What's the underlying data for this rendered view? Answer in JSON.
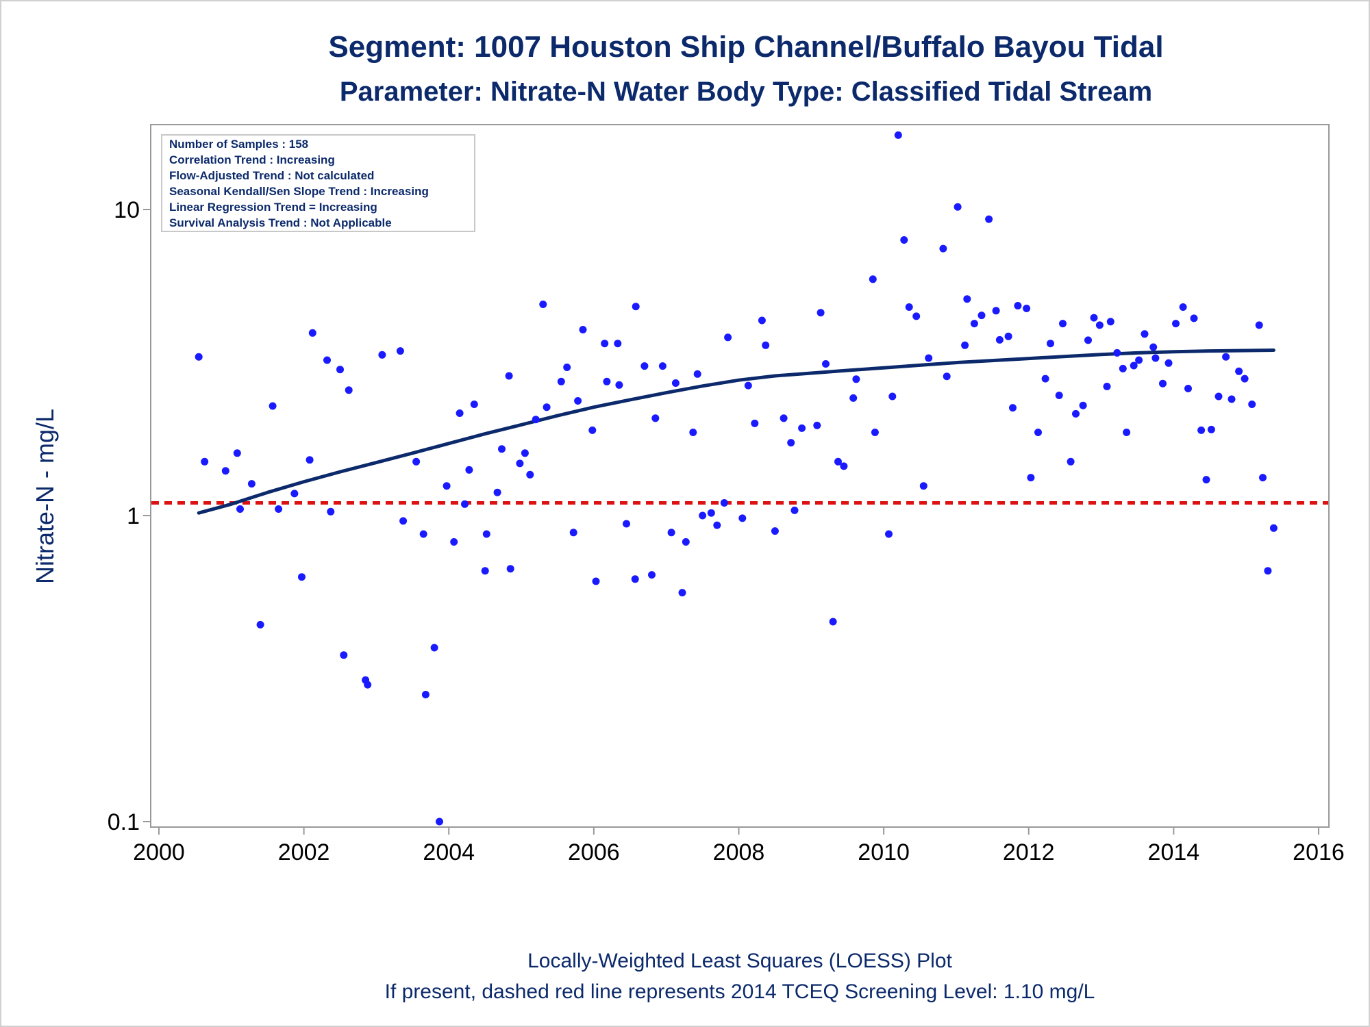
{
  "chart_data": {
    "type": "scatter",
    "title": "Segment: 1007  Houston Ship Channel/Buffalo Bayou Tidal",
    "subtitle": "Parameter: Nitrate-N   Water Body Type: Classified Tidal Stream",
    "xlabel": "",
    "ylabel": "Nitrate-N - mg/L",
    "xlim": [
      2000,
      2016
    ],
    "ylim": [
      0.1,
      20
    ],
    "yscale": "log",
    "grid": false,
    "x_ticks": [
      "2000",
      "2002",
      "2004",
      "2006",
      "2008",
      "2010",
      "2012",
      "2014",
      "2016"
    ],
    "y_ticks": [
      "0.1",
      "1",
      "10"
    ],
    "footnotes": [
      "Locally-Weighted Least Squares (LOESS) Plot",
      "If present, dashed red line represents 2014 TCEQ Screening Level: 1.10 mg/L"
    ],
    "stats_box": {
      "placement": "top-left",
      "lines": [
        "Number of Samples : 158",
        "Correlation Trend : Increasing",
        "Flow-Adjusted Trend : Not calculated",
        "Seasonal Kendall/Sen Slope Trend : Increasing",
        "Linear Regression Trend = Increasing",
        "Survival Analysis Trend : Not Applicable"
      ]
    },
    "screening_level": 1.1,
    "colors": {
      "points": "#1a1aff",
      "loess": "#0c2a6b",
      "screening": "#dd1111",
      "text": "#0c2a6b",
      "axis": "#999999"
    },
    "points": [
      [
        2000.55,
        3.3
      ],
      [
        2000.63,
        1.5
      ],
      [
        2000.92,
        1.4
      ],
      [
        2001.08,
        1.6
      ],
      [
        2001.12,
        1.05
      ],
      [
        2001.28,
        1.27
      ],
      [
        2001.4,
        0.44
      ],
      [
        2001.57,
        2.28
      ],
      [
        2001.65,
        1.05
      ],
      [
        2001.87,
        1.18
      ],
      [
        2001.97,
        0.63
      ],
      [
        2002.08,
        1.52
      ],
      [
        2002.12,
        3.95
      ],
      [
        2002.32,
        3.22
      ],
      [
        2002.37,
        1.03
      ],
      [
        2002.5,
        3.0
      ],
      [
        2002.55,
        0.35
      ],
      [
        2002.62,
        2.57
      ],
      [
        2002.85,
        0.29
      ],
      [
        2002.88,
        0.28
      ],
      [
        2003.08,
        3.35
      ],
      [
        2003.33,
        3.45
      ],
      [
        2003.37,
        0.96
      ],
      [
        2003.55,
        1.5
      ],
      [
        2003.65,
        0.87
      ],
      [
        2003.68,
        0.26
      ],
      [
        2003.8,
        0.37
      ],
      [
        2003.87,
        0.1
      ],
      [
        2003.97,
        1.25
      ],
      [
        2004.07,
        0.82
      ],
      [
        2004.15,
        2.16
      ],
      [
        2004.22,
        1.09
      ],
      [
        2004.28,
        1.41
      ],
      [
        2004.35,
        2.31
      ],
      [
        2004.5,
        0.66
      ],
      [
        2004.52,
        0.87
      ],
      [
        2004.67,
        1.19
      ],
      [
        2004.73,
        1.65
      ],
      [
        2004.83,
        2.86
      ],
      [
        2004.85,
        0.67
      ],
      [
        2004.98,
        1.48
      ],
      [
        2005.05,
        1.6
      ],
      [
        2005.12,
        1.36
      ],
      [
        2005.2,
        2.06
      ],
      [
        2005.3,
        4.9
      ],
      [
        2005.35,
        2.26
      ],
      [
        2005.55,
        2.74
      ],
      [
        2005.63,
        3.05
      ],
      [
        2005.72,
        0.88
      ],
      [
        2005.78,
        2.37
      ],
      [
        2005.85,
        4.05
      ],
      [
        2005.98,
        1.9
      ],
      [
        2006.03,
        0.61
      ],
      [
        2006.15,
        3.65
      ],
      [
        2006.18,
        2.74
      ],
      [
        2006.33,
        3.65
      ],
      [
        2006.35,
        2.67
      ],
      [
        2006.45,
        0.94
      ],
      [
        2006.57,
        0.62
      ],
      [
        2006.58,
        4.82
      ],
      [
        2006.7,
        3.08
      ],
      [
        2006.8,
        0.64
      ],
      [
        2006.85,
        2.08
      ],
      [
        2006.95,
        3.08
      ],
      [
        2007.07,
        0.88
      ],
      [
        2007.13,
        2.71
      ],
      [
        2007.22,
        0.56
      ],
      [
        2007.27,
        0.82
      ],
      [
        2007.37,
        1.87
      ],
      [
        2007.43,
        2.9
      ],
      [
        2007.5,
        1.0
      ],
      [
        2007.62,
        1.02
      ],
      [
        2007.7,
        0.93
      ],
      [
        2007.8,
        1.1
      ],
      [
        2007.85,
        3.82
      ],
      [
        2008.05,
        0.98
      ],
      [
        2008.13,
        2.66
      ],
      [
        2008.22,
        2.0
      ],
      [
        2008.32,
        4.34
      ],
      [
        2008.37,
        3.6
      ],
      [
        2008.5,
        0.89
      ],
      [
        2008.62,
        2.08
      ],
      [
        2008.72,
        1.73
      ],
      [
        2008.77,
        1.04
      ],
      [
        2008.87,
        1.93
      ],
      [
        2009.08,
        1.97
      ],
      [
        2009.13,
        4.6
      ],
      [
        2009.2,
        3.13
      ],
      [
        2009.3,
        0.45
      ],
      [
        2009.37,
        1.5
      ],
      [
        2009.45,
        1.45
      ],
      [
        2009.58,
        2.42
      ],
      [
        2009.62,
        2.79
      ],
      [
        2009.85,
        5.92
      ],
      [
        2009.88,
        1.87
      ],
      [
        2010.07,
        0.87
      ],
      [
        2010.12,
        2.45
      ],
      [
        2010.2,
        17.5
      ],
      [
        2010.28,
        7.95
      ],
      [
        2010.35,
        4.8
      ],
      [
        2010.45,
        4.48
      ],
      [
        2010.55,
        1.25
      ],
      [
        2010.62,
        3.27
      ],
      [
        2010.82,
        7.45
      ],
      [
        2010.87,
        2.85
      ],
      [
        2011.02,
        10.2
      ],
      [
        2011.12,
        3.6
      ],
      [
        2011.15,
        5.1
      ],
      [
        2011.25,
        4.24
      ],
      [
        2011.35,
        4.51
      ],
      [
        2011.45,
        9.3
      ],
      [
        2011.55,
        4.67
      ],
      [
        2011.6,
        3.75
      ],
      [
        2011.72,
        3.85
      ],
      [
        2011.78,
        2.25
      ],
      [
        2011.85,
        4.85
      ],
      [
        2011.97,
        4.75
      ],
      [
        2012.03,
        1.33
      ],
      [
        2012.13,
        1.87
      ],
      [
        2012.23,
        2.8
      ],
      [
        2012.3,
        3.65
      ],
      [
        2012.42,
        2.47
      ],
      [
        2012.47,
        4.24
      ],
      [
        2012.58,
        1.5
      ],
      [
        2012.65,
        2.15
      ],
      [
        2012.75,
        2.29
      ],
      [
        2012.82,
        3.74
      ],
      [
        2012.9,
        4.43
      ],
      [
        2012.98,
        4.19
      ],
      [
        2013.08,
        2.64
      ],
      [
        2013.13,
        4.3
      ],
      [
        2013.22,
        3.4
      ],
      [
        2013.3,
        3.02
      ],
      [
        2013.35,
        1.87
      ],
      [
        2013.45,
        3.09
      ],
      [
        2013.52,
        3.22
      ],
      [
        2013.6,
        3.92
      ],
      [
        2013.72,
        3.55
      ],
      [
        2013.75,
        3.27
      ],
      [
        2013.85,
        2.7
      ],
      [
        2013.93,
        3.15
      ],
      [
        2014.03,
        4.24
      ],
      [
        2014.13,
        4.8
      ],
      [
        2014.2,
        2.6
      ],
      [
        2014.28,
        4.41
      ],
      [
        2014.38,
        1.9
      ],
      [
        2014.45,
        1.31
      ],
      [
        2014.52,
        1.91
      ],
      [
        2014.62,
        2.45
      ],
      [
        2014.72,
        3.3
      ],
      [
        2014.8,
        2.4
      ],
      [
        2014.9,
        2.96
      ],
      [
        2014.98,
        2.8
      ],
      [
        2015.08,
        2.31
      ],
      [
        2015.18,
        4.19
      ],
      [
        2015.23,
        1.33
      ],
      [
        2015.3,
        0.66
      ],
      [
        2015.38,
        0.91
      ]
    ],
    "loess": [
      [
        2000.55,
        1.02
      ],
      [
        2001.0,
        1.09
      ],
      [
        2001.5,
        1.19
      ],
      [
        2002.0,
        1.29
      ],
      [
        2002.5,
        1.39
      ],
      [
        2003.0,
        1.49
      ],
      [
        2003.5,
        1.6
      ],
      [
        2004.0,
        1.72
      ],
      [
        2004.5,
        1.85
      ],
      [
        2005.0,
        1.98
      ],
      [
        2005.5,
        2.12
      ],
      [
        2006.0,
        2.26
      ],
      [
        2006.5,
        2.39
      ],
      [
        2007.0,
        2.52
      ],
      [
        2007.5,
        2.65
      ],
      [
        2008.0,
        2.77
      ],
      [
        2008.5,
        2.86
      ],
      [
        2009.0,
        2.92
      ],
      [
        2009.5,
        2.98
      ],
      [
        2010.0,
        3.04
      ],
      [
        2010.5,
        3.1
      ],
      [
        2011.0,
        3.16
      ],
      [
        2011.5,
        3.21
      ],
      [
        2012.0,
        3.26
      ],
      [
        2012.5,
        3.31
      ],
      [
        2013.0,
        3.36
      ],
      [
        2013.5,
        3.4
      ],
      [
        2014.0,
        3.43
      ],
      [
        2014.5,
        3.45
      ],
      [
        2015.0,
        3.46
      ],
      [
        2015.38,
        3.47
      ]
    ]
  }
}
